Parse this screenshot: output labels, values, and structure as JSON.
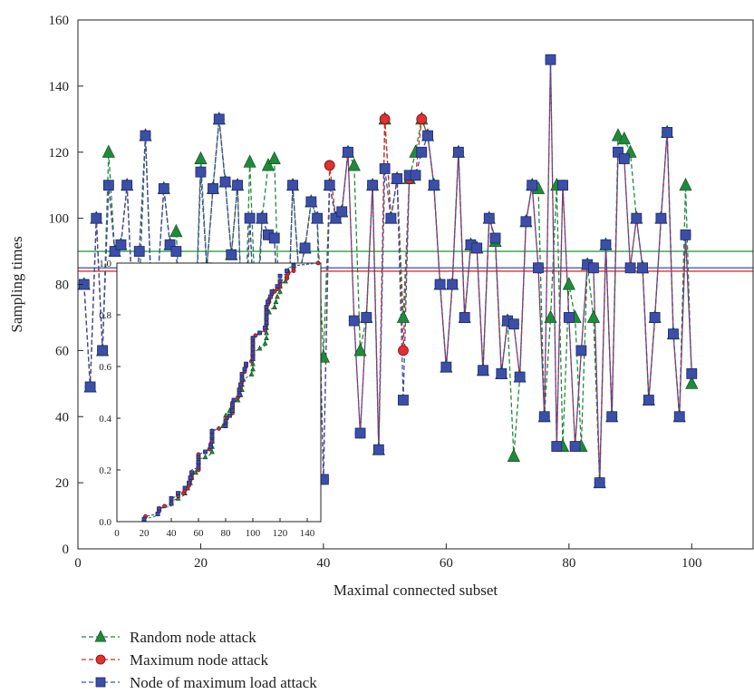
{
  "chart_data": {
    "type": "line",
    "title": "",
    "xlabel": "Maximal connected subset",
    "ylabel": "Sampling times",
    "xlim": [
      0,
      110
    ],
    "ylim": [
      0,
      160
    ],
    "xticks": [
      0,
      20,
      40,
      60,
      80,
      100
    ],
    "yticks": [
      0,
      20,
      40,
      60,
      80,
      100,
      120,
      140,
      160
    ],
    "grid": false,
    "legend_position": "bottom-left",
    "series": [
      {
        "name": "Random node attack",
        "color": "#1f8a3a",
        "marker": "triangle",
        "line_style": "dashed",
        "x": [
          1,
          2,
          3,
          4,
          5,
          6,
          7,
          8,
          9,
          10,
          11,
          12,
          13,
          14,
          15,
          16,
          17,
          18,
          19,
          20,
          21,
          22,
          23,
          24,
          25,
          26,
          27,
          28,
          29,
          30,
          31,
          32,
          33,
          34,
          35,
          36,
          37,
          38,
          39,
          40,
          41,
          42,
          43,
          44,
          45,
          46,
          47,
          48,
          49,
          50,
          51,
          52,
          53,
          54,
          55,
          56,
          57,
          58,
          59,
          60,
          61,
          62,
          63,
          64,
          65,
          66,
          67,
          68,
          69,
          70,
          71,
          72,
          73,
          74,
          75,
          76,
          77,
          78,
          79,
          80,
          81,
          82,
          83,
          84,
          85,
          86,
          87,
          88,
          89,
          90,
          91,
          92,
          93,
          94,
          95,
          96,
          97,
          98,
          99,
          100
        ],
        "y": [
          80,
          49,
          100,
          60,
          120,
          90,
          92,
          110,
          70,
          78,
          125,
          75,
          81,
          109,
          92,
          96,
          60,
          55,
          60,
          118,
          85,
          109,
          130,
          111,
          89,
          110,
          50,
          117,
          70,
          100,
          116,
          118,
          60,
          55,
          110,
          83,
          91,
          105,
          100,
          58,
          110,
          100,
          102,
          120,
          116,
          60,
          70,
          110,
          30,
          130,
          100,
          112,
          70,
          112,
          120,
          130,
          125,
          110,
          80,
          55,
          80,
          120,
          70,
          92,
          91,
          54,
          100,
          93,
          53,
          69,
          28,
          52,
          99,
          110,
          109,
          40,
          70,
          110,
          31,
          80,
          70,
          31,
          86,
          70,
          20,
          92,
          40,
          125,
          124,
          120,
          100,
          85,
          45,
          70,
          100,
          126,
          65,
          40,
          110,
          50
        ]
      },
      {
        "name": "Maximum node attack",
        "color": "#d22b2b",
        "marker": "circle",
        "line_style": "dashed",
        "x": [
          1,
          2,
          3,
          4,
          5,
          6,
          7,
          8,
          9,
          10,
          11,
          12,
          13,
          14,
          15,
          16,
          17,
          18,
          19,
          20,
          21,
          22,
          23,
          24,
          25,
          26,
          27,
          28,
          29,
          30,
          31,
          32,
          33,
          34,
          35,
          36,
          37,
          38,
          39,
          40,
          41,
          42,
          43,
          44,
          45,
          46,
          47,
          48,
          49,
          50,
          51,
          52,
          53,
          54,
          55,
          56,
          57,
          58,
          59,
          60,
          61,
          62,
          63,
          64,
          65,
          66,
          67,
          68,
          69,
          70,
          71,
          72,
          73,
          74,
          75,
          76,
          77,
          78,
          79,
          80,
          81,
          82,
          83,
          84,
          85,
          86,
          87,
          88,
          89,
          90,
          91,
          92,
          93,
          94,
          95,
          96,
          97,
          98,
          99,
          100
        ],
        "y": [
          80,
          49,
          100,
          60,
          110,
          90,
          92,
          110,
          70,
          90,
          125,
          75,
          81,
          109,
          92,
          90,
          60,
          55,
          60,
          114,
          85,
          109,
          130,
          111,
          89,
          110,
          50,
          100,
          60,
          100,
          95,
          94,
          60,
          55,
          110,
          83,
          91,
          105,
          100,
          21,
          116,
          100,
          102,
          120,
          69,
          35,
          70,
          110,
          30,
          130,
          100,
          112,
          60,
          112,
          113,
          130,
          125,
          110,
          80,
          55,
          80,
          120,
          70,
          92,
          91,
          54,
          100,
          94,
          53,
          69,
          68,
          52,
          99,
          110,
          85,
          40,
          148,
          31,
          110,
          70,
          31,
          60,
          86,
          85,
          20,
          92,
          40,
          120,
          118,
          85,
          100,
          85,
          45,
          70,
          100,
          126,
          65,
          40,
          95,
          53
        ]
      },
      {
        "name": "Node of maximum load attack",
        "color": "#3b4fa8",
        "marker": "square",
        "line_style": "dashed",
        "x": [
          1,
          2,
          3,
          4,
          5,
          6,
          7,
          8,
          9,
          10,
          11,
          12,
          13,
          14,
          15,
          16,
          17,
          18,
          19,
          20,
          21,
          22,
          23,
          24,
          25,
          26,
          27,
          28,
          29,
          30,
          31,
          32,
          33,
          34,
          35,
          36,
          37,
          38,
          39,
          40,
          41,
          42,
          43,
          44,
          45,
          46,
          47,
          48,
          49,
          50,
          51,
          52,
          53,
          54,
          55,
          56,
          57,
          58,
          59,
          60,
          61,
          62,
          63,
          64,
          65,
          66,
          67,
          68,
          69,
          70,
          71,
          72,
          73,
          74,
          75,
          76,
          77,
          78,
          79,
          80,
          81,
          82,
          83,
          84,
          85,
          86,
          87,
          88,
          89,
          90,
          91,
          92,
          93,
          94,
          95,
          96,
          97,
          98,
          99,
          100
        ],
        "y": [
          80,
          49,
          100,
          60,
          110,
          90,
          92,
          110,
          70,
          90,
          125,
          75,
          81,
          109,
          92,
          90,
          60,
          55,
          60,
          114,
          85,
          109,
          130,
          111,
          89,
          110,
          50,
          100,
          60,
          100,
          95,
          94,
          60,
          55,
          110,
          83,
          91,
          105,
          100,
          21,
          110,
          100,
          102,
          120,
          69,
          35,
          70,
          110,
          30,
          115,
          100,
          112,
          45,
          113,
          113,
          120,
          125,
          110,
          80,
          55,
          80,
          120,
          70,
          92,
          91,
          54,
          100,
          94,
          53,
          69,
          68,
          52,
          99,
          110,
          85,
          40,
          148,
          31,
          110,
          70,
          31,
          60,
          86,
          85,
          20,
          92,
          40,
          120,
          118,
          85,
          100,
          85,
          45,
          70,
          100,
          126,
          65,
          40,
          95,
          53
        ]
      }
    ],
    "reference_lines": [
      {
        "y": 90,
        "color": "#2e9e4a"
      },
      {
        "y": 85,
        "color": "#3b4fa8"
      },
      {
        "y": 84,
        "color": "#e03030"
      }
    ],
    "inset": {
      "type": "line",
      "xlim": [
        0,
        150
      ],
      "ylim": [
        0,
        1.0
      ],
      "xticks": [
        0,
        20,
        40,
        60,
        80,
        100,
        120,
        140
      ],
      "yticks": [
        0.0,
        0.2,
        0.4,
        0.6,
        0.8,
        1.0
      ],
      "ytick_labels": [
        "0.0",
        "0.2",
        "0.4",
        "0.6",
        "0.8",
        "1.0"
      ]
    }
  }
}
